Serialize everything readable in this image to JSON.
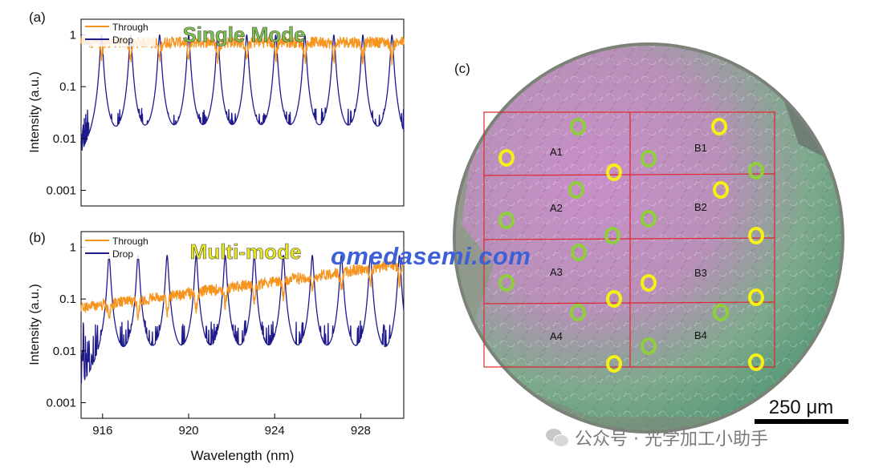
{
  "panels": {
    "a": {
      "panel_label": "(a)",
      "title": "Single Mode",
      "title_color": "#7cc24a",
      "ylabel": "Intensity (a.u.)",
      "legend": [
        "Through",
        "Drop"
      ],
      "ytick_labels": [
        "1",
        "0.1",
        "0.01",
        "0.001"
      ]
    },
    "b": {
      "panel_label": "(b)",
      "title": "Multi-mode",
      "title_color": "#e8e81c",
      "ylabel": "Intensity (a.u.)",
      "legend": [
        "Through",
        "Drop"
      ],
      "ytick_labels": [
        "1",
        "0.1",
        "0.01",
        "0.001"
      ],
      "xtick_labels": [
        "916",
        "920",
        "924",
        "928"
      ],
      "xlabel": "Wavelength (nm)"
    },
    "c": {
      "panel_label": "(c)",
      "region_labels": [
        "A1",
        "A2",
        "A3",
        "A4",
        "B1",
        "B2",
        "B3",
        "B4"
      ],
      "scale_bar_label": "250 μm",
      "ring_colors": {
        "green": "#8fce3c",
        "yellow": "#f6f014"
      }
    }
  },
  "watermark": "omedasemi.com",
  "footer_text": "公众号 · 光学加工小助手",
  "colors": {
    "through": "#f7941d",
    "drop": "#1f1a8c"
  },
  "chart_data": [
    {
      "type": "line",
      "title": "Single Mode",
      "xlabel": "",
      "ylabel": "Intensity (a.u.)",
      "xlim": [
        915,
        930
      ],
      "ylim": [
        0.0005,
        2
      ],
      "yscale": "log",
      "legend_position": "top-left",
      "series": [
        {
          "name": "Through",
          "baseline": 0.75,
          "dip_to": 0.35
        },
        {
          "name": "Drop",
          "peak": 1.0,
          "floor": 0.001
        }
      ],
      "resonance_peaks_nm": [
        915.95,
        917.3,
        918.65,
        920.0,
        921.35,
        922.7,
        924.05,
        925.4,
        926.75,
        928.1,
        929.45
      ]
    },
    {
      "type": "line",
      "title": "Multi-mode",
      "xlabel": "Wavelength (nm)",
      "ylabel": "Intensity (a.u.)",
      "xlim": [
        915,
        930
      ],
      "ylim": [
        0.0005,
        2
      ],
      "yscale": "log",
      "legend_position": "top-left",
      "series": [
        {
          "name": "Through",
          "start": 0.07,
          "end": 0.5
        },
        {
          "name": "Drop",
          "peak": 0.7,
          "floor": 0.001
        }
      ],
      "resonance_peaks_nm": [
        916.3,
        917.65,
        919.0,
        920.35,
        921.7,
        923.05,
        924.4,
        925.75,
        927.1,
        928.45,
        929.8
      ]
    }
  ]
}
